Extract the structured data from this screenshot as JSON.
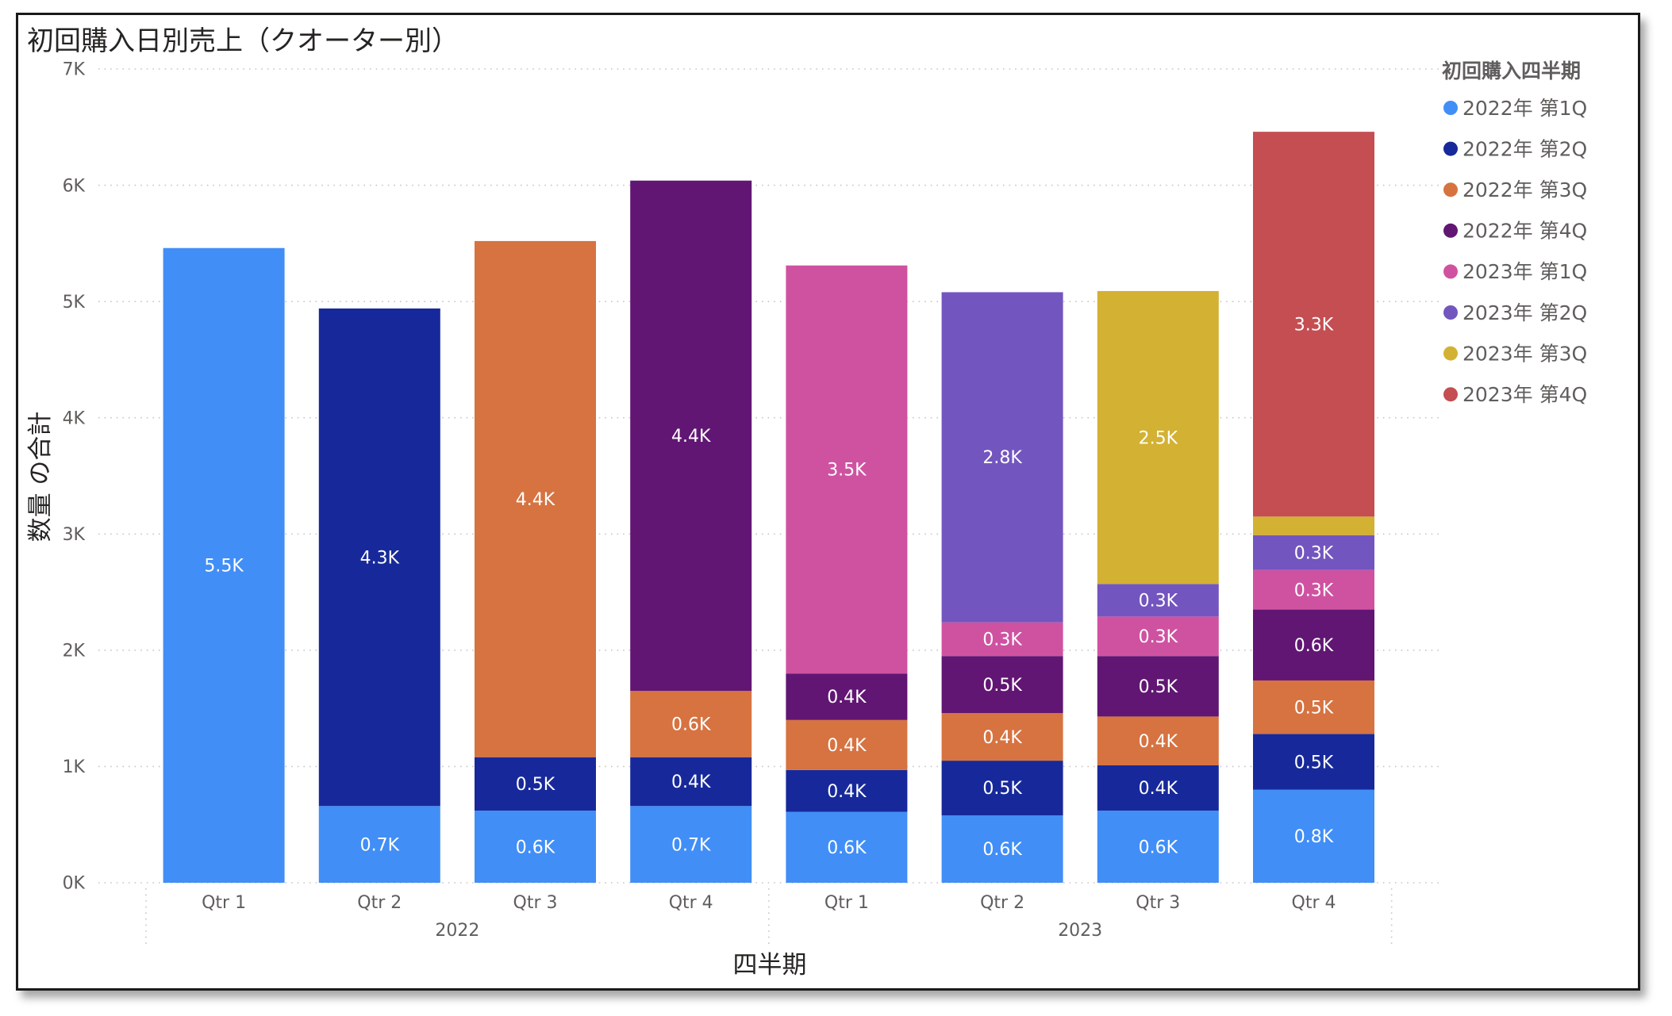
{
  "chart_data": {
    "type": "bar",
    "stacked": true,
    "title": "初回購入日別売上（クオーター別）",
    "xlabel": "四半期",
    "ylabel": "数量 の合計",
    "ylim": [
      0,
      7000
    ],
    "yticks": [
      0,
      1000,
      2000,
      3000,
      4000,
      5000,
      6000,
      7000
    ],
    "ytick_labels": [
      "0K",
      "1K",
      "2K",
      "3K",
      "4K",
      "5K",
      "6K",
      "7K"
    ],
    "categories": [
      "Qtr 1",
      "Qtr 2",
      "Qtr 3",
      "Qtr 4",
      "Qtr 1",
      "Qtr 2",
      "Qtr 3",
      "Qtr 4"
    ],
    "category_groups": [
      {
        "label": "2022",
        "count": 4
      },
      {
        "label": "2023",
        "count": 4
      }
    ],
    "grid": true,
    "legend": {
      "title": "初回購入四半期",
      "position": "right"
    },
    "series": [
      {
        "name": "2022年 第1Q",
        "color": "#418EF6",
        "values": [
          5460,
          660,
          620,
          660,
          610,
          580,
          620,
          800
        ],
        "labels": [
          "5.5K",
          "0.7K",
          "0.6K",
          "0.7K",
          "0.6K",
          "0.6K",
          "0.6K",
          "0.8K"
        ]
      },
      {
        "name": "2022年 第2Q",
        "color": "#17299A",
        "values": [
          null,
          4280,
          460,
          420,
          360,
          470,
          390,
          480
        ],
        "labels": [
          null,
          "4.3K",
          "0.5K",
          "0.4K",
          "0.4K",
          "0.5K",
          "0.4K",
          "0.5K"
        ]
      },
      {
        "name": "2022年 第3Q",
        "color": "#D67341",
        "values": [
          null,
          null,
          4440,
          570,
          430,
          410,
          420,
          460
        ],
        "labels": [
          null,
          null,
          "4.4K",
          "0.6K",
          "0.4K",
          "0.4K",
          "0.4K",
          "0.5K"
        ]
      },
      {
        "name": "2022年 第4Q",
        "color": "#611673",
        "values": [
          null,
          null,
          null,
          4390,
          400,
          490,
          520,
          610
        ],
        "labels": [
          null,
          null,
          null,
          "4.4K",
          "0.4K",
          "0.5K",
          "0.5K",
          "0.6K"
        ]
      },
      {
        "name": "2023年 第1Q",
        "color": "#CF52A1",
        "values": [
          null,
          null,
          null,
          null,
          3510,
          290,
          340,
          340
        ],
        "labels": [
          null,
          null,
          null,
          null,
          "3.5K",
          "0.3K",
          "0.3K",
          "0.3K"
        ]
      },
      {
        "name": "2023年 第2Q",
        "color": "#7355BF",
        "values": [
          null,
          null,
          null,
          null,
          null,
          2840,
          280,
          300
        ],
        "labels": [
          null,
          null,
          null,
          null,
          null,
          "2.8K",
          "0.3K",
          "0.3K"
        ]
      },
      {
        "name": "2023年 第3Q",
        "color": "#D3B133",
        "values": [
          null,
          null,
          null,
          null,
          null,
          null,
          2520,
          160
        ],
        "labels": [
          null,
          null,
          null,
          null,
          null,
          null,
          "2.5K",
          null
        ]
      },
      {
        "name": "2023年 第4Q",
        "color": "#C44E51",
        "values": [
          null,
          null,
          null,
          null,
          null,
          null,
          null,
          3310
        ],
        "labels": [
          null,
          null,
          null,
          null,
          null,
          null,
          null,
          "3.3K"
        ]
      }
    ]
  }
}
